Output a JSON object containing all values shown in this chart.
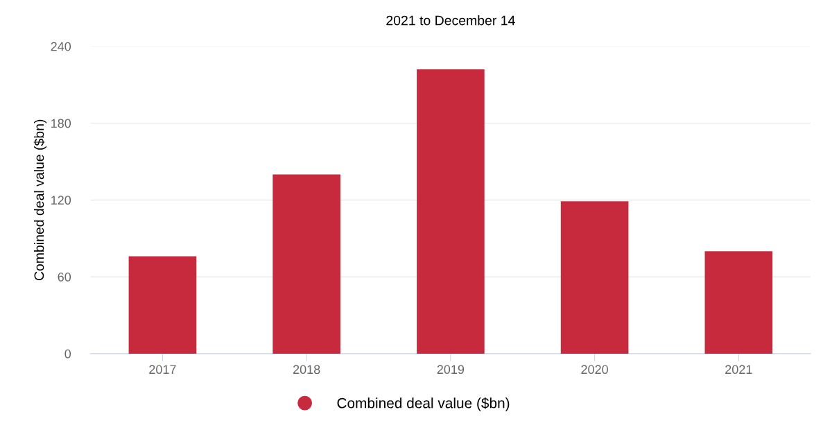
{
  "chart_data": {
    "type": "bar",
    "title": "2021 to December 14",
    "ylabel": "Combined deal value ($bn)",
    "categories": [
      "2017",
      "2018",
      "2019",
      "2020",
      "2021"
    ],
    "series": [
      {
        "name": "Combined deal value ($bn)",
        "color": "#c62a3c",
        "values": [
          76,
          140,
          222,
          119,
          80
        ]
      }
    ],
    "ylim": [
      0,
      240
    ],
    "yticks": [
      0,
      60,
      120,
      180,
      240
    ],
    "grid": "y",
    "legend": "bottom"
  }
}
